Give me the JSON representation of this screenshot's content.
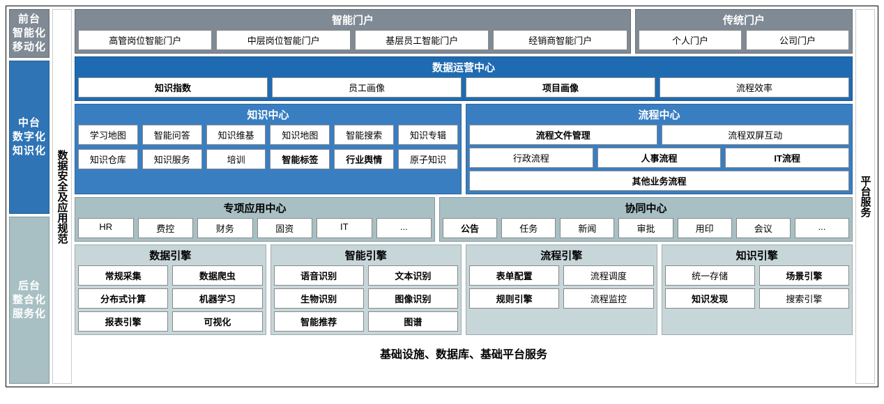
{
  "colors": {
    "gray_header": "#808a95",
    "blue_dark": "#1f6bb2",
    "blue_mid": "#3a7ec2",
    "teal": "#a8c0c4",
    "teal_light": "#c7d6d9",
    "left_blue": "#2f74b5",
    "white": "#ffffff",
    "black": "#000000"
  },
  "left_labels": {
    "a": "前台\n智能化\n移动化",
    "b": "中台\n数字化\n知识化",
    "c": "后台\n整合化\n服务化"
  },
  "sec_left": "数据安全及应用规范",
  "right": "平台服务",
  "portal": {
    "smart_title": "智能门户",
    "trad_title": "传统门户",
    "smart_items": [
      "高管岗位智能门户",
      "中层岗位智能门户",
      "基层员工智能门户",
      "经销商智能门户"
    ],
    "trad_items": [
      "个人门户",
      "公司门户"
    ]
  },
  "datacenter": {
    "title": "数据运营中心",
    "items": [
      "知识指数",
      "员工画像",
      "项目画像",
      "流程效率"
    ],
    "bold": [
      true,
      false,
      true,
      false
    ]
  },
  "kc": {
    "title": "知识中心",
    "r1": [
      "学习地图",
      "智能问答",
      "知识维基",
      "知识地图",
      "智能搜索",
      "知识专辑"
    ],
    "r2": [
      "知识仓库",
      "知识服务",
      "培训",
      "智能标签",
      "行业舆情",
      "原子知识"
    ],
    "r2bold": [
      false,
      false,
      false,
      true,
      true,
      false
    ]
  },
  "pc": {
    "title": "流程中心",
    "r1": [
      "流程文件管理",
      "流程双屏互动"
    ],
    "r1bold": [
      true,
      false
    ],
    "r2": [
      "行政流程",
      "人事流程",
      "IT流程"
    ],
    "r2bold": [
      false,
      true,
      true
    ],
    "r3": "其他业务流程"
  },
  "appc": {
    "title": "专项应用中心",
    "items": [
      "HR",
      "费控",
      "财务",
      "固资",
      "IT",
      "..."
    ]
  },
  "collab": {
    "title": "协同中心",
    "items": [
      "公告",
      "任务",
      "新闻",
      "审批",
      "用印",
      "会议",
      "..."
    ],
    "bold": [
      true,
      false,
      false,
      false,
      false,
      false,
      false
    ]
  },
  "engines": {
    "data": {
      "title": "数据引擎",
      "rows": [
        [
          "常规采集",
          "数据爬虫"
        ],
        [
          "分布式计算",
          "机器学习"
        ],
        [
          "报表引擎",
          "可视化"
        ]
      ],
      "bold": [
        [
          true,
          true
        ],
        [
          true,
          true
        ],
        [
          true,
          true
        ]
      ]
    },
    "smart": {
      "title": "智能引擎",
      "rows": [
        [
          "语音识别",
          "文本识别"
        ],
        [
          "生物识别",
          "图像识别"
        ],
        [
          "智能推荐",
          "图谱"
        ]
      ],
      "bold": [
        [
          true,
          true
        ],
        [
          true,
          true
        ],
        [
          true,
          true
        ]
      ]
    },
    "proc": {
      "title": "流程引擎",
      "rows": [
        [
          "表单配置",
          "流程调度"
        ],
        [
          "规则引擎",
          "流程监控"
        ]
      ],
      "bold": [
        [
          true,
          false
        ],
        [
          true,
          false
        ]
      ]
    },
    "know": {
      "title": "知识引擎",
      "rows": [
        [
          "统一存储",
          "场景引擎"
        ],
        [
          "知识发现",
          "搜索引擎"
        ]
      ],
      "bold": [
        [
          false,
          true
        ],
        [
          true,
          false
        ]
      ]
    }
  },
  "footer": "基础设施、数据库、基础平台服务"
}
